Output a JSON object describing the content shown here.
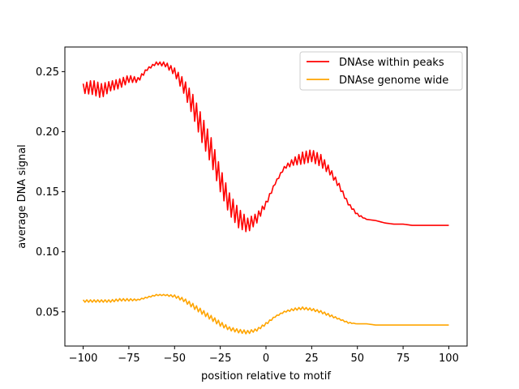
{
  "chart_data": {
    "type": "line",
    "title": "",
    "xlabel": "position relative to motif",
    "ylabel": "average DNA signal",
    "xlim": [
      -110,
      110
    ],
    "ylim": [
      0.0215,
      0.2705
    ],
    "x_ticks": [
      -100,
      -75,
      -50,
      -25,
      0,
      25,
      50,
      75,
      100
    ],
    "x_tick_labels": [
      "−100",
      "−75",
      "−50",
      "−25",
      "0",
      "25",
      "50",
      "75",
      "100"
    ],
    "y_ticks": [
      0.05,
      0.1,
      0.15,
      0.2,
      0.25
    ],
    "y_tick_labels": [
      "0.05",
      "0.10",
      "0.15",
      "0.20",
      "0.25"
    ],
    "grid": false,
    "legend_position": "top-right",
    "series": [
      {
        "name": "DNAse within peaks",
        "color": "#ff0000",
        "x": [
          -100,
          -95,
          -90,
          -85,
          -80,
          -75,
          -70,
          -65,
          -60,
          -55,
          -50,
          -45,
          -40,
          -35,
          -30,
          -25,
          -20,
          -15,
          -10,
          -5,
          0,
          5,
          10,
          15,
          20,
          25,
          30,
          35,
          40,
          45,
          50,
          55,
          60,
          65,
          70,
          75,
          80,
          85,
          90,
          95,
          100
        ],
        "y": [
          0.236,
          0.237,
          0.234,
          0.238,
          0.24,
          0.244,
          0.243,
          0.252,
          0.257,
          0.256,
          0.25,
          0.238,
          0.222,
          0.202,
          0.184,
          0.16,
          0.14,
          0.128,
          0.122,
          0.128,
          0.14,
          0.157,
          0.17,
          0.175,
          0.178,
          0.18,
          0.176,
          0.167,
          0.155,
          0.14,
          0.131,
          0.127,
          0.126,
          0.124,
          0.123,
          0.123,
          0.122,
          0.122,
          0.122,
          0.122,
          0.122
        ],
        "ripple": [
          0.004,
          0.006,
          0.006,
          0.004,
          0.004,
          0.003,
          0.002,
          0.001,
          0.001,
          0.002,
          0.003,
          0.006,
          0.009,
          0.011,
          0.011,
          0.01,
          0.009,
          0.008,
          0.006,
          0.004,
          0.002,
          0.001,
          0.001,
          0.003,
          0.005,
          0.005,
          0.005,
          0.003,
          0.002,
          0.001,
          0.001,
          0.0,
          0.0,
          0.0,
          0.0,
          0.0,
          0.0,
          0.0,
          0.0,
          0.0,
          0.0
        ]
      },
      {
        "name": "DNAse genome wide",
        "color": "#ffa500",
        "x": [
          -100,
          -95,
          -90,
          -85,
          -80,
          -75,
          -70,
          -65,
          -60,
          -55,
          -50,
          -45,
          -40,
          -35,
          -30,
          -25,
          -20,
          -15,
          -10,
          -5,
          0,
          5,
          10,
          15,
          20,
          25,
          30,
          35,
          40,
          45,
          50,
          55,
          60,
          65,
          70,
          75,
          80,
          85,
          90,
          95,
          100
        ],
        "y": [
          0.059,
          0.059,
          0.059,
          0.059,
          0.06,
          0.06,
          0.06,
          0.062,
          0.064,
          0.064,
          0.063,
          0.06,
          0.055,
          0.05,
          0.045,
          0.04,
          0.036,
          0.034,
          0.033,
          0.035,
          0.04,
          0.046,
          0.05,
          0.052,
          0.053,
          0.052,
          0.05,
          0.047,
          0.044,
          0.041,
          0.04,
          0.04,
          0.039,
          0.039,
          0.039,
          0.039,
          0.039,
          0.039,
          0.039,
          0.039,
          0.039
        ],
        "ripple": [
          0.001,
          0.001,
          0.001,
          0.001,
          0.001,
          0.001,
          0.0005,
          0.0005,
          0.0005,
          0.0005,
          0.001,
          0.0015,
          0.002,
          0.002,
          0.002,
          0.002,
          0.0015,
          0.0015,
          0.0015,
          0.001,
          0.001,
          0.0005,
          0.0005,
          0.001,
          0.001,
          0.001,
          0.001,
          0.001,
          0.0005,
          0.0005,
          0.0,
          0.0,
          0.0,
          0.0,
          0.0,
          0.0,
          0.0,
          0.0,
          0.0,
          0.0,
          0.0
        ]
      }
    ]
  }
}
